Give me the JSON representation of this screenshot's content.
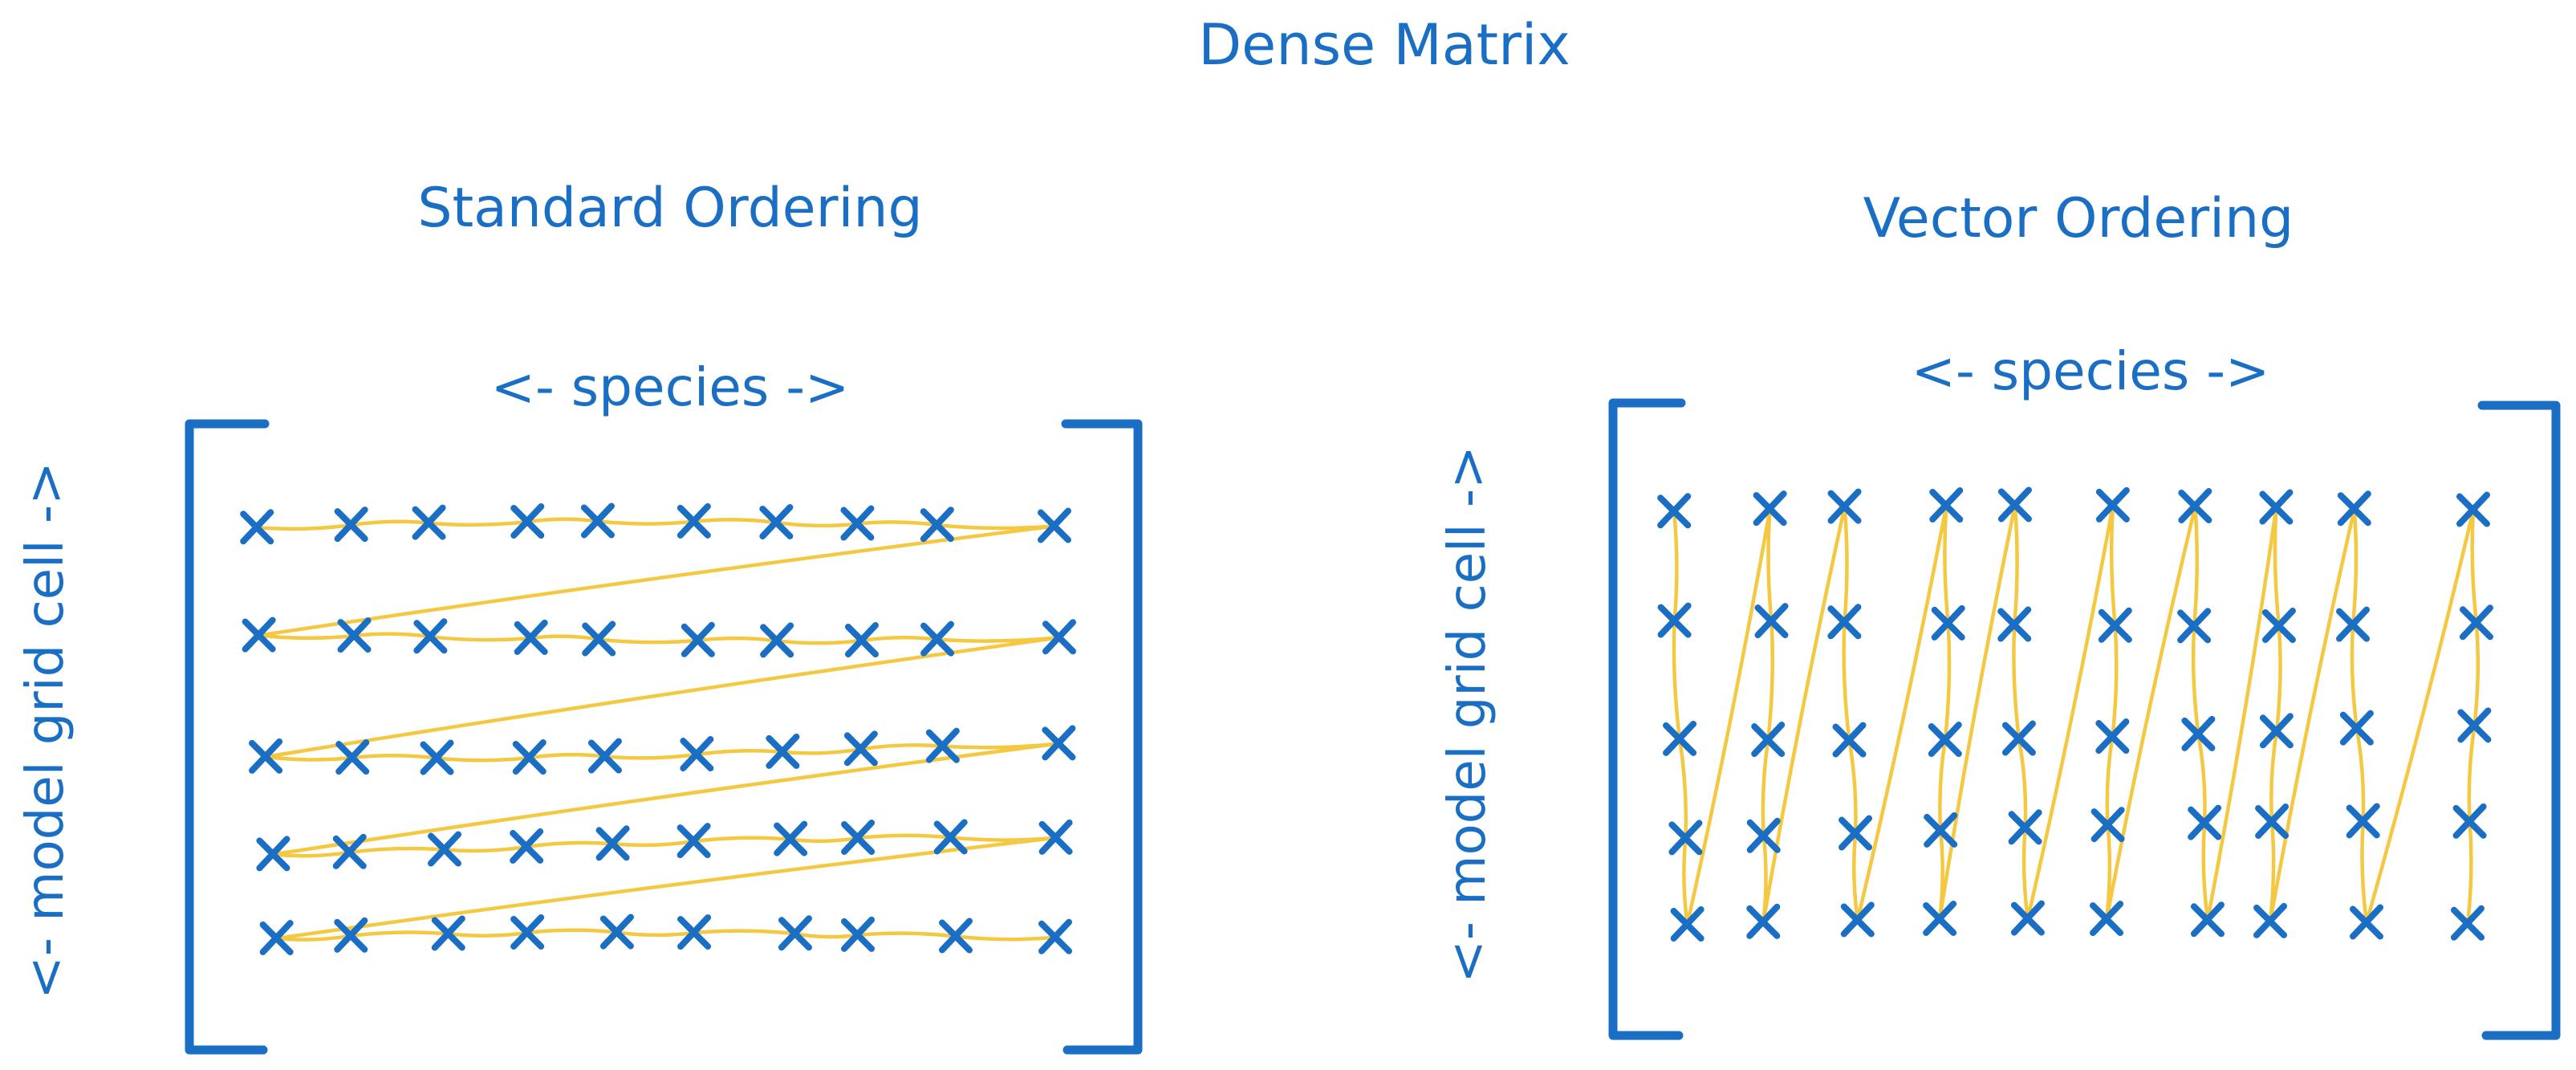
{
  "title": "Dense Matrix",
  "colors": {
    "ink": "#1a6fc4",
    "path": "#f5c842",
    "background": "#ffffff"
  },
  "left_panel": {
    "heading": "Standard Ordering",
    "column_axis_label": "<- species ->",
    "row_axis_label": "<- model grid cell ->",
    "rows": 5,
    "columns": 10,
    "path_order": "row-major"
  },
  "right_panel": {
    "heading": "Vector Ordering",
    "column_axis_label": "<- species ->",
    "row_axis_label": "<- model grid cell ->",
    "rows": 5,
    "columns": 10,
    "path_order": "column-major"
  }
}
